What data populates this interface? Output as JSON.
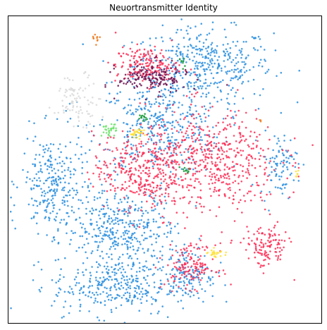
{
  "chart_data": {
    "type": "scatter",
    "title": "Neuortransmitter Identity",
    "xlabel": "",
    "ylabel": "",
    "grid": false,
    "legend": "none",
    "axes_ticks": "none",
    "series": [
      {
        "color": "#2a8fdf",
        "clusters": [
          {
            "cx": 0.62,
            "cy": 0.84,
            "rx": 0.22,
            "ry": 0.12,
            "n": 420
          },
          {
            "cx": 0.48,
            "cy": 0.64,
            "rx": 0.2,
            "ry": 0.15,
            "n": 380
          },
          {
            "cx": 0.36,
            "cy": 0.3,
            "rx": 0.18,
            "ry": 0.14,
            "n": 420
          },
          {
            "cx": 0.14,
            "cy": 0.46,
            "rx": 0.1,
            "ry": 0.16,
            "n": 260
          },
          {
            "cx": 0.34,
            "cy": 0.12,
            "rx": 0.2,
            "ry": 0.09,
            "n": 300
          },
          {
            "cx": 0.58,
            "cy": 0.16,
            "rx": 0.08,
            "ry": 0.08,
            "n": 120
          },
          {
            "cx": 0.86,
            "cy": 0.52,
            "rx": 0.06,
            "ry": 0.1,
            "n": 90
          }
        ]
      },
      {
        "color": "#ff2d55",
        "clusters": [
          {
            "cx": 0.44,
            "cy": 0.84,
            "rx": 0.1,
            "ry": 0.06,
            "n": 180
          },
          {
            "cx": 0.41,
            "cy": 0.5,
            "rx": 0.14,
            "ry": 0.12,
            "n": 300
          },
          {
            "cx": 0.64,
            "cy": 0.53,
            "rx": 0.22,
            "ry": 0.17,
            "n": 560
          },
          {
            "cx": 0.58,
            "cy": 0.19,
            "rx": 0.08,
            "ry": 0.07,
            "n": 140
          },
          {
            "cx": 0.82,
            "cy": 0.25,
            "rx": 0.07,
            "ry": 0.07,
            "n": 120
          }
        ]
      },
      {
        "color": "#6b0f4e",
        "clusters": [
          {
            "cx": 0.46,
            "cy": 0.8,
            "rx": 0.11,
            "ry": 0.05,
            "n": 160
          }
        ]
      },
      {
        "color": "#1a9a3a",
        "clusters": [
          {
            "cx": 0.43,
            "cy": 0.67,
            "rx": 0.02,
            "ry": 0.02,
            "n": 14
          },
          {
            "cx": 0.56,
            "cy": 0.5,
            "rx": 0.015,
            "ry": 0.015,
            "n": 10
          },
          {
            "cx": 0.55,
            "cy": 0.85,
            "rx": 0.01,
            "ry": 0.02,
            "n": 8
          }
        ]
      },
      {
        "color": "#6de36d",
        "clusters": [
          {
            "cx": 0.32,
            "cy": 0.63,
            "rx": 0.025,
            "ry": 0.02,
            "n": 30
          }
        ]
      },
      {
        "color": "#ffe135",
        "clusters": [
          {
            "cx": 0.41,
            "cy": 0.62,
            "rx": 0.025,
            "ry": 0.015,
            "n": 28
          },
          {
            "cx": 0.66,
            "cy": 0.23,
            "rx": 0.025,
            "ry": 0.015,
            "n": 24
          },
          {
            "cx": 0.92,
            "cy": 0.49,
            "rx": 0.01,
            "ry": 0.01,
            "n": 6
          }
        ]
      },
      {
        "color": "#f07a1e",
        "clusters": [
          {
            "cx": 0.28,
            "cy": 0.92,
            "rx": 0.01,
            "ry": 0.02,
            "n": 10
          },
          {
            "cx": 0.8,
            "cy": 0.66,
            "rx": 0.005,
            "ry": 0.005,
            "n": 3
          }
        ]
      },
      {
        "color": "#d9d9d9",
        "clusters": [
          {
            "cx": 0.22,
            "cy": 0.73,
            "rx": 0.07,
            "ry": 0.08,
            "n": 90
          }
        ]
      }
    ],
    "xlim": [
      0,
      1
    ],
    "ylim": [
      0,
      1
    ]
  }
}
